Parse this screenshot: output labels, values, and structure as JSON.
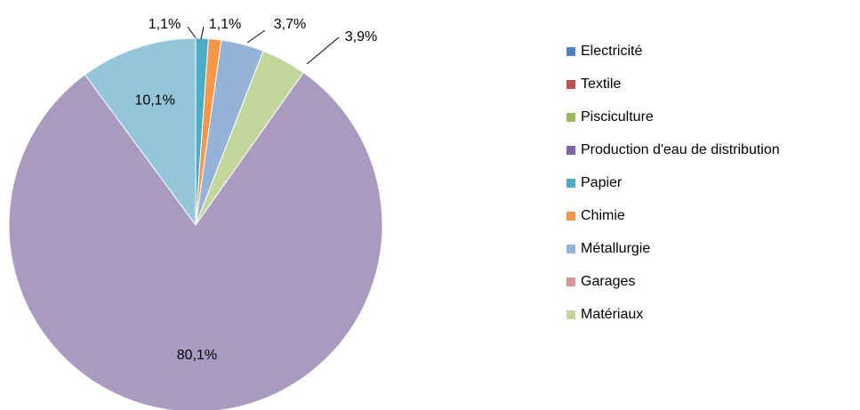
{
  "chart_data": {
    "type": "pie",
    "categories": [
      "Electricité",
      "Textile",
      "Pisciculture",
      "Production d'eau de distribution",
      "Papier",
      "Chimie",
      "Métallurgie",
      "Garages",
      "Matériaux",
      null,
      null
    ],
    "values": [
      0,
      0,
      0,
      0,
      1.1,
      1.1,
      3.7,
      0,
      3.9,
      80.1,
      10.1
    ],
    "value_labels": [
      null,
      null,
      null,
      null,
      "1,1%",
      "1,1%",
      "3,7%",
      null,
      "3,9%",
      "80,1%",
      "10,1%"
    ],
    "colors": [
      "#4f81bd",
      "#c0504d",
      "#9bbb59",
      "#8064a2",
      "#4bacc6",
      "#f79646",
      "#95b3d7",
      "#d99694",
      "#c3d69b",
      "#a99bbf",
      "#93c6d9"
    ],
    "legend": "right"
  }
}
